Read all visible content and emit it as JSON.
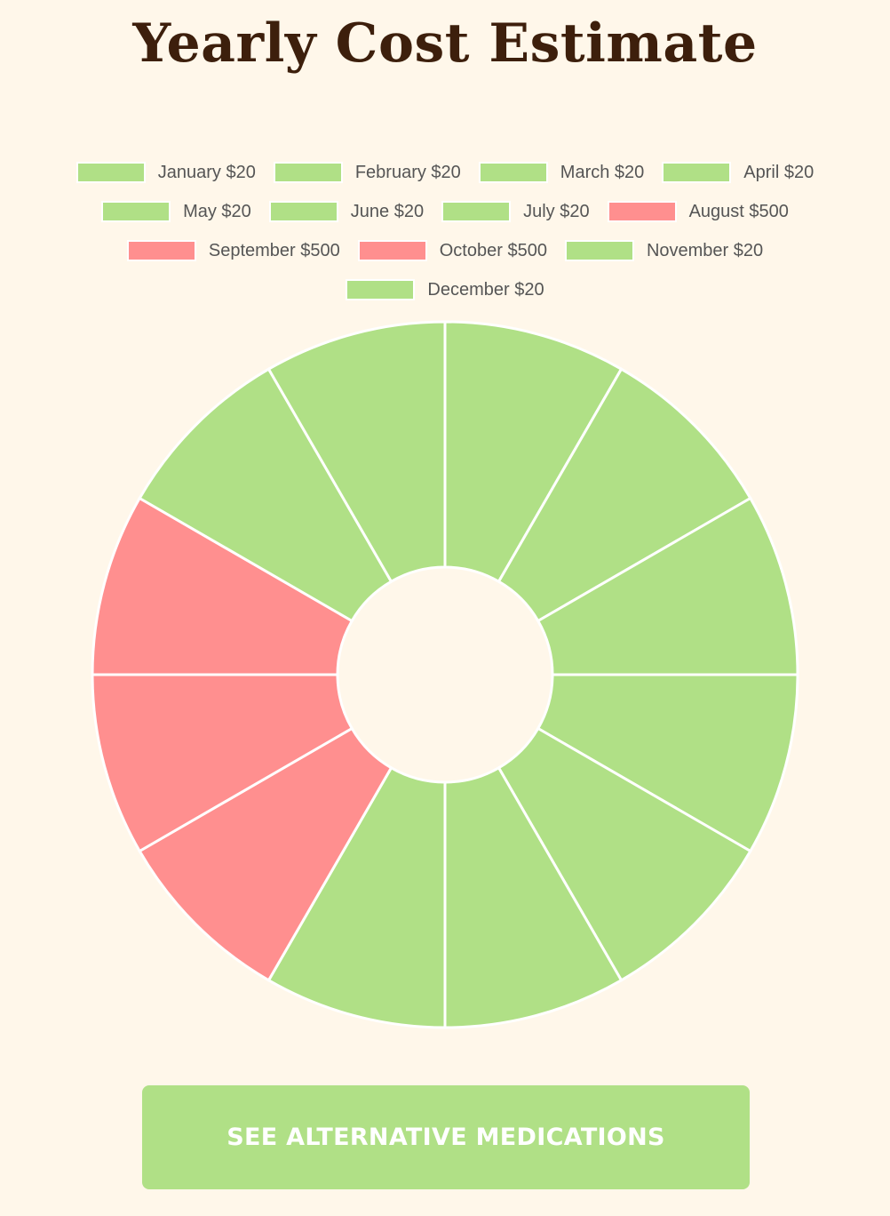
{
  "title": "Yearly Cost Estimate",
  "colors": {
    "background": "#fff7ea",
    "title": "#3d1f0c",
    "low_cost": "#b0e086",
    "high_cost": "#ff8f8f",
    "slice_border": "#ffffff",
    "button": "#b0e086",
    "button_text": "#ffffff"
  },
  "chart_data": {
    "type": "pie",
    "variant": "doughnut",
    "title": "Yearly Cost Estimate",
    "categories": [
      "January",
      "February",
      "March",
      "April",
      "May",
      "June",
      "July",
      "August",
      "September",
      "October",
      "November",
      "December"
    ],
    "values": [
      20,
      20,
      20,
      20,
      20,
      20,
      20,
      500,
      500,
      500,
      20,
      20
    ],
    "legend_labels": [
      "January $20",
      "February $20",
      "March $20",
      "April $20",
      "May $20",
      "June $20",
      "July $20",
      "August $500",
      "September $500",
      "October $500",
      "November $20",
      "December $20"
    ],
    "slice_colors": [
      "#b0e086",
      "#b0e086",
      "#b0e086",
      "#b0e086",
      "#b0e086",
      "#b0e086",
      "#b0e086",
      "#ff8f8f",
      "#ff8f8f",
      "#ff8f8f",
      "#b0e086",
      "#b0e086"
    ],
    "equal_slices": true,
    "legend_position": "top",
    "grid": false
  },
  "button": {
    "label": "SEE ALTERNATIVE MEDICATIONS"
  }
}
